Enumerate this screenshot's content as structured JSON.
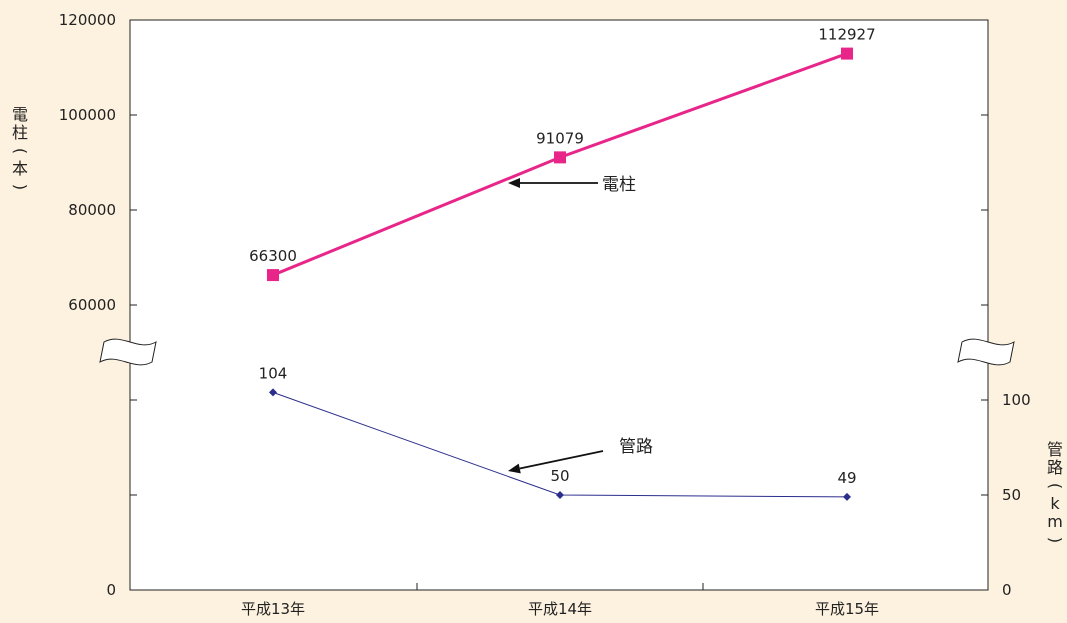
{
  "chart_data": {
    "type": "line",
    "title": "",
    "categories": [
      "平成13年",
      "平成14年",
      "平成15年"
    ],
    "left_axis": {
      "label": "電柱（本）",
      "ticks": [
        "0",
        "60000",
        "80000",
        "100000",
        "120000"
      ],
      "range": [
        60000,
        120000
      ],
      "broken": true
    },
    "right_axis": {
      "label": "管路（km）",
      "ticks": [
        "0",
        "50",
        "100"
      ],
      "range": [
        0,
        100
      ],
      "broken": true
    },
    "series": [
      {
        "name": "電柱",
        "axis": "left",
        "values": [
          66300,
          91079,
          112927
        ],
        "labels": [
          "66300",
          "91079",
          "112927"
        ],
        "color": "#e8268a",
        "marker": "square"
      },
      {
        "name": "管路",
        "axis": "right",
        "values": [
          104,
          50,
          49
        ],
        "labels": [
          "104",
          "50",
          "49"
        ],
        "color": "#2b2e8c",
        "marker": "diamond"
      }
    ],
    "annotations": [
      {
        "text": "電柱",
        "series": 0
      },
      {
        "text": "管路",
        "series": 1
      }
    ],
    "grid": false,
    "background": "#fdf2df",
    "plot_background": "#ffffff"
  }
}
